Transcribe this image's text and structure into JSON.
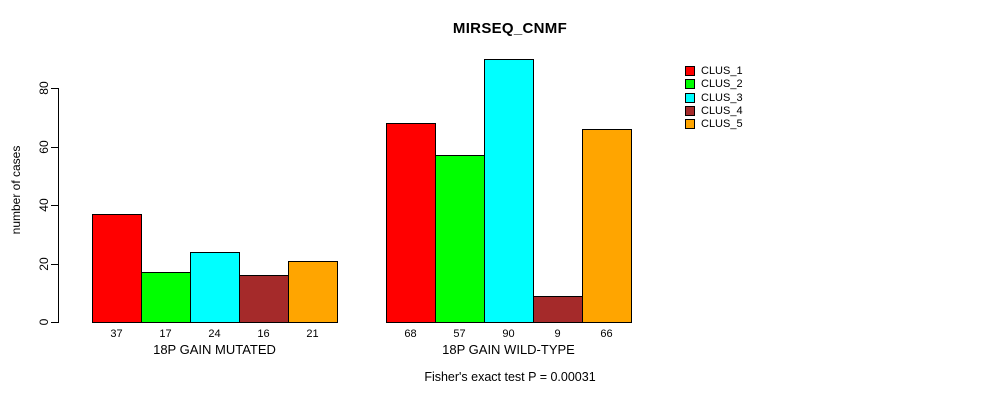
{
  "chart_data": {
    "type": "bar",
    "title": "MIRSEQ_CNMF",
    "ylabel": "number of cases",
    "xlabel": "",
    "ylim": [
      0,
      90
    ],
    "yticks": [
      0,
      20,
      40,
      60,
      80
    ],
    "grid": false,
    "legend_position": "top-right",
    "show_bar_values": true,
    "categories": [
      "18P GAIN MUTATED",
      "18P GAIN WILD-TYPE"
    ],
    "series": [
      {
        "name": "CLUS_1",
        "color": "#ff0000",
        "values": [
          37,
          68
        ]
      },
      {
        "name": "CLUS_2",
        "color": "#00ff00",
        "values": [
          17,
          57
        ]
      },
      {
        "name": "CLUS_3",
        "color": "#00ffff",
        "values": [
          24,
          90
        ]
      },
      {
        "name": "CLUS_4",
        "color": "#a52a2a",
        "values": [
          16,
          9
        ]
      },
      {
        "name": "CLUS_5",
        "color": "#ffa500",
        "values": [
          21,
          66
        ]
      }
    ],
    "annotation": "Fisher's exact test P = 0.00031"
  }
}
